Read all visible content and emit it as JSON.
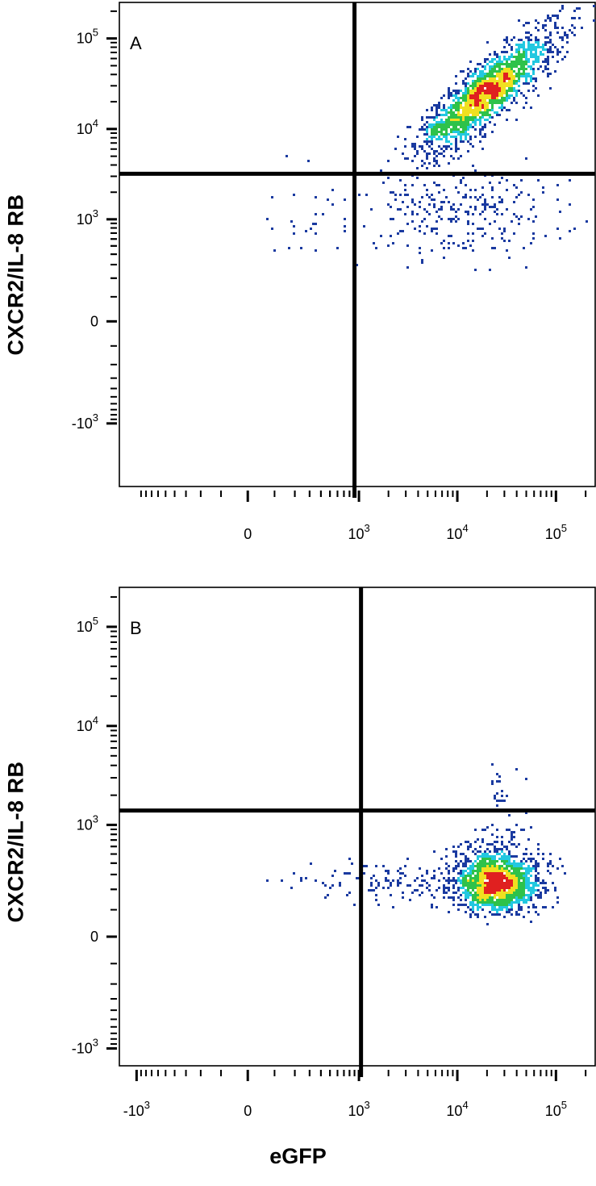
{
  "chart_data": [
    {
      "type": "scatter",
      "panel_label": "A",
      "ylabel": "CXCR2/IL-8 RB",
      "xlabel": "",
      "x_ticks": [
        {
          "value": 0,
          "base": "0",
          "exp": ""
        },
        {
          "value": 1000,
          "base": "10",
          "exp": "3"
        },
        {
          "value": 10000,
          "base": "10",
          "exp": "4"
        },
        {
          "value": 100000,
          "base": "10",
          "exp": "5"
        }
      ],
      "y_ticks": [
        {
          "value": 100000,
          "base": "10",
          "exp": "5"
        },
        {
          "value": 10000,
          "base": "10",
          "exp": "4"
        },
        {
          "value": 1000,
          "base": "10",
          "exp": "3"
        },
        {
          "value": 0,
          "base": "0",
          "exp": ""
        },
        {
          "value": -1000,
          "base": "-10",
          "exp": "3"
        }
      ],
      "xlim": [
        -1500,
        250000
      ],
      "ylim": [
        -5000,
        250000
      ],
      "gate": {
        "x": 900,
        "y": 3200
      },
      "populations": [
        {
          "x_center": 20000,
          "y_center": 25000,
          "x_spread_decades": 0.35,
          "y_spread_decades": 0.35,
          "count": 1800,
          "correlated": true
        },
        {
          "x_center": 12000,
          "y_center": 1200,
          "x_spread_decades": 0.45,
          "y_spread_decades": 0.25,
          "count": 260,
          "correlated": false
        },
        {
          "x_center": 300,
          "y_center": 900,
          "x_spread_decades": 0.3,
          "y_spread_decades": 0.35,
          "count": 30,
          "correlated": false
        }
      ],
      "scale": "biexponential",
      "grid": false,
      "colors": {
        "low": "#1a3aa0",
        "mid": "#22c8e0",
        "mid2": "#2ec24a",
        "high": "#f0e020",
        "peak": "#e02020"
      }
    },
    {
      "type": "scatter",
      "panel_label": "B",
      "ylabel": "CXCR2/IL-8 RB",
      "xlabel": "eGFP",
      "x_ticks": [
        {
          "value": -1000,
          "base": "-10",
          "exp": "3"
        },
        {
          "value": 0,
          "base": "0",
          "exp": ""
        },
        {
          "value": 1000,
          "base": "10",
          "exp": "3"
        },
        {
          "value": 10000,
          "base": "10",
          "exp": "4"
        },
        {
          "value": 100000,
          "base": "10",
          "exp": "5"
        }
      ],
      "y_ticks": [
        {
          "value": 100000,
          "base": "10",
          "exp": "5"
        },
        {
          "value": 10000,
          "base": "10",
          "exp": "4"
        },
        {
          "value": 1000,
          "base": "10",
          "exp": "3"
        },
        {
          "value": 0,
          "base": "0",
          "exp": ""
        },
        {
          "value": -1000,
          "base": "-10",
          "exp": "3"
        }
      ],
      "xlim": [
        -1500,
        250000
      ],
      "ylim": [
        -1500,
        250000
      ],
      "gate": {
        "x": 1050,
        "y": 1400
      },
      "populations": [
        {
          "x_center": 25000,
          "y_center": 250,
          "x_spread_decades": 0.22,
          "y_spread_decades": 0.2,
          "count": 1600,
          "correlated": false
        },
        {
          "x_center": 3000,
          "y_center": 250,
          "x_spread_decades": 0.55,
          "y_spread_decades": 0.12,
          "count": 160,
          "correlated": false
        },
        {
          "x_center": 30000,
          "y_center": 1800,
          "x_spread_decades": 0.12,
          "y_spread_decades": 0.2,
          "count": 25,
          "correlated": false
        }
      ],
      "scale": "biexponential",
      "grid": false,
      "colors": {
        "low": "#1a3aa0",
        "mid": "#22c8e0",
        "mid2": "#2ec24a",
        "high": "#f0e020",
        "peak": "#e02020"
      }
    }
  ]
}
